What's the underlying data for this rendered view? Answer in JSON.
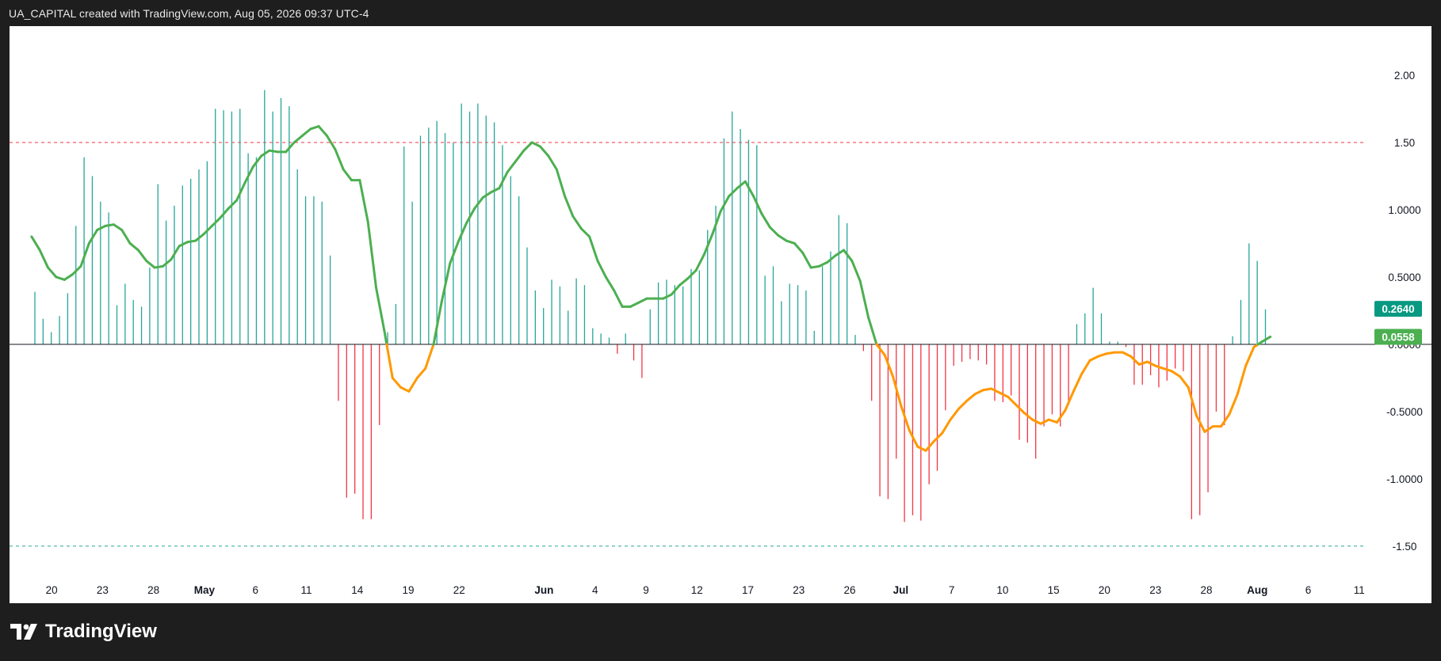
{
  "header": {
    "text": "UA_CAPITAL created with TradingView.com, Aug 05, 2026 09:37 UTC-4"
  },
  "brand": {
    "name": "TradingView",
    "logo_icon": "tradingview-logo-icon"
  },
  "chart_data": {
    "type": "bar+line",
    "title": "",
    "xlabel": "",
    "ylabel": "",
    "ylim": [
      -1.83,
      2.1
    ],
    "y_ticks": [
      "2.00",
      "1.50",
      "1.0000",
      "0.5000",
      "0.0000",
      "-0.5000",
      "-1.0000",
      "-1.50"
    ],
    "x_ticks": [
      {
        "label": "20",
        "i": 2,
        "bold": false
      },
      {
        "label": "23",
        "i": 5,
        "bold": false
      },
      {
        "label": "28",
        "i": 8,
        "bold": false
      },
      {
        "label": "May",
        "i": 11,
        "bold": true
      },
      {
        "label": "6",
        "i": 14,
        "bold": false
      },
      {
        "label": "11",
        "i": 17,
        "bold": false
      },
      {
        "label": "14",
        "i": 20,
        "bold": false
      },
      {
        "label": "19",
        "i": 23,
        "bold": false
      },
      {
        "label": "22",
        "i": 26,
        "bold": false
      },
      {
        "label": "Jun",
        "i": 31,
        "bold": true
      },
      {
        "label": "4",
        "i": 34,
        "bold": false
      },
      {
        "label": "9",
        "i": 37,
        "bold": false
      },
      {
        "label": "12",
        "i": 40,
        "bold": false
      },
      {
        "label": "17",
        "i": 43,
        "bold": false
      },
      {
        "label": "23",
        "i": 46,
        "bold": false
      },
      {
        "label": "26",
        "i": 49,
        "bold": false
      },
      {
        "label": "Jul",
        "i": 52,
        "bold": true
      },
      {
        "label": "7",
        "i": 55,
        "bold": false
      },
      {
        "label": "10",
        "i": 58,
        "bold": false
      },
      {
        "label": "15",
        "i": 61,
        "bold": false
      },
      {
        "label": "20",
        "i": 64,
        "bold": false
      },
      {
        "label": "23",
        "i": 67,
        "bold": false
      },
      {
        "label": "28",
        "i": 70,
        "bold": false
      },
      {
        "label": "Aug",
        "i": 73,
        "bold": true
      },
      {
        "label": "6",
        "i": 76,
        "bold": false
      },
      {
        "label": "11",
        "i": 79,
        "bold": false
      }
    ],
    "levels": [
      {
        "value": 1.5,
        "color": "#f23645",
        "style": "dashed"
      },
      {
        "value": -1.5,
        "color": "#26a69a",
        "style": "dashed"
      }
    ],
    "bar_positive_color": "#26a69a",
    "bar_negative_color": "#f23645",
    "line_up_color": "#4caf50",
    "line_down_color": "#ff9800",
    "bars": [
      0.39,
      0.19,
      0.09,
      0.21,
      0.38,
      0.88,
      1.39,
      1.25,
      1.06,
      0.98,
      0.29,
      0.45,
      0.33,
      0.28,
      0.57,
      1.19,
      0.92,
      1.03,
      1.18,
      1.23,
      1.3,
      1.36,
      1.75,
      1.74,
      1.73,
      1.75,
      1.42,
      1.39,
      1.89,
      1.73,
      1.83,
      1.77,
      1.3,
      1.1,
      1.1,
      1.06,
      0.66,
      -0.42,
      -1.14,
      -1.11,
      -1.3,
      -1.3,
      -0.6,
      0.09,
      0.3,
      1.47,
      1.06,
      1.55,
      1.61,
      1.66,
      1.57,
      1.5,
      1.79,
      1.73,
      1.79,
      1.7,
      1.65,
      1.48,
      1.25,
      1.1,
      0.72,
      0.4,
      0.27,
      0.48,
      0.43,
      0.25,
      0.49,
      0.44,
      0.12,
      0.08,
      0.05,
      -0.07,
      0.08,
      -0.12,
      -0.25,
      0.26,
      0.46,
      0.48,
      0.44,
      0.43,
      0.56,
      0.55,
      0.85,
      1.03,
      1.53,
      1.73,
      1.6,
      1.52,
      1.48,
      0.51,
      0.58,
      0.32,
      0.45,
      0.44,
      0.4,
      0.1,
      0.58,
      0.69,
      0.96,
      0.9,
      0.07,
      -0.05,
      -0.42,
      -1.13,
      -1.15,
      -0.85,
      -1.32,
      -1.27,
      -1.31,
      -1.04,
      -0.94,
      -0.49,
      -0.16,
      -0.13,
      -0.11,
      -0.12,
      -0.15,
      -0.42,
      -0.43,
      -0.38,
      -0.71,
      -0.73,
      -0.85,
      -0.61,
      -0.52,
      -0.61,
      -0.45,
      0.15,
      0.23,
      0.42,
      0.23,
      0.02,
      0.02,
      -0.02,
      -0.3,
      -0.3,
      -0.23,
      -0.32,
      -0.27,
      -0.18,
      -0.2,
      -1.3,
      -1.27,
      -1.1,
      -0.5,
      -0.6,
      0.06,
      0.33,
      0.75,
      0.62,
      0.26
    ],
    "x_start_i": 0,
    "line_x_offset_i": -0.4,
    "line": [
      0.8,
      0.7,
      0.57,
      0.5,
      0.48,
      0.52,
      0.58,
      0.75,
      0.85,
      0.88,
      0.89,
      0.85,
      0.75,
      0.7,
      0.62,
      0.57,
      0.58,
      0.63,
      0.73,
      0.76,
      0.77,
      0.82,
      0.88,
      0.94,
      1.01,
      1.07,
      1.2,
      1.32,
      1.4,
      1.44,
      1.43,
      1.43,
      1.5,
      1.55,
      1.6,
      1.62,
      1.55,
      1.45,
      1.3,
      1.22,
      1.22,
      0.91,
      0.42,
      0.1,
      -0.25,
      -0.32,
      -0.35,
      -0.25,
      -0.18,
      0.0,
      0.32,
      0.6,
      0.76,
      0.9,
      1.01,
      1.09,
      1.13,
      1.16,
      1.28,
      1.36,
      1.44,
      1.5,
      1.47,
      1.4,
      1.3,
      1.1,
      0.95,
      0.86,
      0.8,
      0.62,
      0.5,
      0.4,
      0.28,
      0.28,
      0.31,
      0.34,
      0.34,
      0.34,
      0.37,
      0.44,
      0.49,
      0.55,
      0.67,
      0.82,
      0.99,
      1.1,
      1.16,
      1.21,
      1.1,
      0.97,
      0.87,
      0.81,
      0.77,
      0.75,
      0.68,
      0.57,
      0.58,
      0.61,
      0.66,
      0.7,
      0.62,
      0.47,
      0.2,
      0.0,
      -0.08,
      -0.24,
      -0.46,
      -0.64,
      -0.76,
      -0.79,
      -0.72,
      -0.66,
      -0.56,
      -0.48,
      -0.42,
      -0.37,
      -0.34,
      -0.33,
      -0.36,
      -0.39,
      -0.45,
      -0.51,
      -0.56,
      -0.59,
      -0.56,
      -0.58,
      -0.49,
      -0.35,
      -0.22,
      -0.12,
      -0.09,
      -0.07,
      -0.06,
      -0.06,
      -0.09,
      -0.15,
      -0.13,
      -0.16,
      -0.18,
      -0.2,
      -0.24,
      -0.32,
      -0.53,
      -0.65,
      -0.61,
      -0.61,
      -0.52,
      -0.37,
      -0.16,
      -0.02,
      0.02,
      0.0558
    ],
    "last_values": [
      {
        "label": "0.2640",
        "color": "#089981",
        "value": 0.264
      },
      {
        "label": "0.0558",
        "color": "#4caf50",
        "value": 0.0558
      }
    ]
  }
}
